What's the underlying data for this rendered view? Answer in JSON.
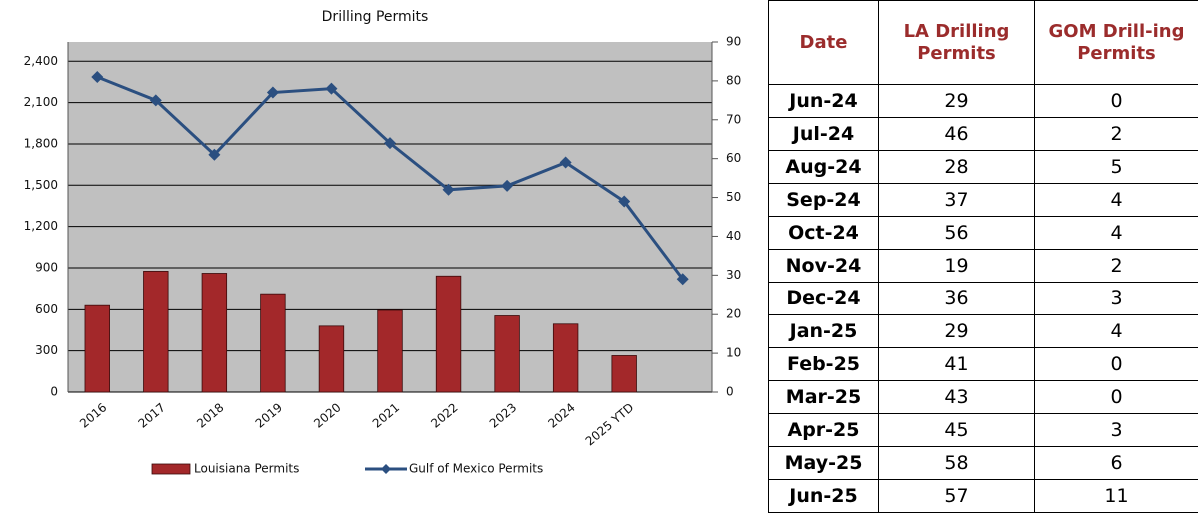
{
  "chart_data": {
    "type": "bar_line",
    "title": "Drilling Permits",
    "categories": [
      "2016",
      "2017",
      "2018",
      "2019",
      "2020",
      "2021",
      "2022",
      "2023",
      "2024",
      "2025 YTD",
      null
    ],
    "series": [
      {
        "name": "Louisiana Permits",
        "color": "#a3282a",
        "kind": "bar",
        "values": [
          630,
          875,
          860,
          710,
          480,
          595,
          840,
          555,
          495,
          265,
          null
        ]
      },
      {
        "name": "Gulf of Mexico Permits",
        "color": "#2b4f80",
        "kind": "line",
        "axis": "y2",
        "values": [
          81,
          75,
          61,
          77,
          78,
          64,
          52,
          53,
          59,
          49,
          29
        ]
      }
    ],
    "ylim": [
      0,
      2540
    ],
    "yticks": [
      0,
      300,
      600,
      900,
      {
        "value": 1200,
        "label": "1,200"
      },
      {
        "value": 1500,
        "label": "1,500"
      },
      {
        "value": 1800,
        "label": "1,800"
      },
      {
        "value": 2100,
        "label": "2,100"
      },
      {
        "value": 2400,
        "label": "2,400"
      }
    ],
    "y2lim": [
      0,
      90
    ],
    "y2ticks": [
      0,
      10,
      20,
      30,
      40,
      50,
      60,
      70,
      80,
      90
    ],
    "grid": true,
    "legend": "bottom"
  },
  "table": {
    "columns": [
      "Date",
      "LA Drilling Permits",
      "GOM Drill-ing Permits"
    ],
    "rows": [
      [
        "Jun-24",
        29,
        0
      ],
      [
        "Jul-24",
        46,
        2
      ],
      [
        "Aug-24",
        28,
        5
      ],
      [
        "Sep-24",
        37,
        4
      ],
      [
        "Oct-24",
        56,
        4
      ],
      [
        "Nov-24",
        19,
        2
      ],
      [
        "Dec-24",
        36,
        3
      ],
      [
        "Jan-25",
        29,
        4
      ],
      [
        "Feb-25",
        41,
        0
      ],
      [
        "Mar-25",
        43,
        0
      ],
      [
        "Apr-25",
        45,
        3
      ],
      [
        "May-25",
        58,
        6
      ],
      [
        "Jun-25",
        57,
        11
      ]
    ]
  }
}
